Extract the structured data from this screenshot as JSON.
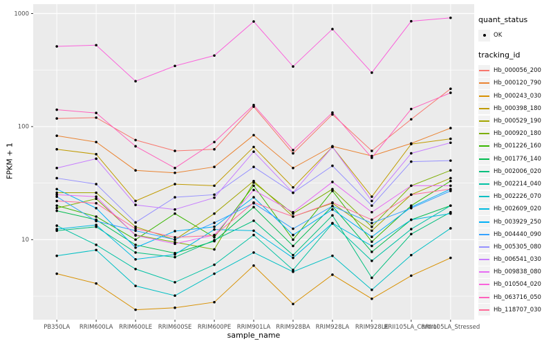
{
  "y_axis": {
    "title": "FPKM + 1",
    "ticks": [
      {
        "label": "10",
        "value": 10
      },
      {
        "label": "100",
        "value": 100
      },
      {
        "label": "1000",
        "value": 1000
      }
    ],
    "minor_gridlines": [
      3.1623,
      31.623,
      316.23
    ]
  },
  "x_axis": {
    "title": "sample_name"
  },
  "legend": {
    "quant_status": {
      "title": "quant_status",
      "items": [
        {
          "label": "OK",
          "marker": "black-point"
        }
      ]
    },
    "tracking": {
      "title": "tracking_id"
    }
  },
  "style": {
    "page_bg": "#FFFFFF",
    "panel_bg": "#EBEBEB",
    "grid_color": "#FFFFFF",
    "tick_label_color": "#4D4D4D",
    "axis_title_color": "#000000",
    "point_color": "#000000",
    "legend_key_bg": "#F2F2F2"
  },
  "chart_data": {
    "type": "line",
    "title": "",
    "xlabel": "sample_name",
    "ylabel": "FPKM + 1",
    "yscale": "log10",
    "ylim": [
      1.96,
      1210
    ],
    "grid": true,
    "legend_position": "right",
    "point_marker": "black dot (quant_status = OK)",
    "categories": [
      "PB350LA",
      "RRIM600LA",
      "RRIM600LE",
      "RRIM600SE",
      "RRIM600PE",
      "RRIM901LA",
      "RRIM928BA",
      "RRIM928LA",
      "RRIM928LE",
      "RRII105LA_Control",
      "RRII105LA_Stressed"
    ],
    "series": [
      {
        "name": "Hb_000056_200",
        "color": "#F8766D",
        "values": [
          118,
          120,
          76,
          61,
          63,
          150,
          58,
          128,
          61,
          116,
          216
        ]
      },
      {
        "name": "Hb_000120_790",
        "color": "#EA8331",
        "values": [
          83,
          73,
          41,
          39,
          44,
          84,
          43,
          67,
          55,
          71,
          97
        ]
      },
      {
        "name": "Hb_000243_030",
        "color": "#D89000",
        "values": [
          5.0,
          4.1,
          2.4,
          2.5,
          2.8,
          5.9,
          2.7,
          4.9,
          3.0,
          4.8,
          6.9
        ]
      },
      {
        "name": "Hb_000398_180",
        "color": "#C09B00",
        "values": [
          63,
          57,
          22,
          31,
          30,
          66,
          29,
          66,
          24,
          70,
          78
        ]
      },
      {
        "name": "Hb_000529_190",
        "color": "#A3A500",
        "values": [
          26,
          26,
          13,
          10,
          17,
          33,
          16,
          21,
          12,
          25,
          35
        ]
      },
      {
        "name": "Hb_000920_180",
        "color": "#7CAE00",
        "values": [
          19,
          23,
          11,
          9.5,
          8.2,
          32,
          17,
          28,
          13,
          30,
          41
        ]
      },
      {
        "name": "Hb_001226_160",
        "color": "#39B600",
        "values": [
          20,
          16,
          10,
          17,
          10.5,
          30,
          10,
          27,
          9.6,
          20,
          33
        ]
      },
      {
        "name": "Hb_001776_140",
        "color": "#00BB4E",
        "values": [
          18,
          15,
          9,
          7.6,
          9.7,
          19.4,
          8.8,
          19.8,
          7.8,
          15,
          20
        ]
      },
      {
        "name": "Hb_002006_020",
        "color": "#00BF7D",
        "values": [
          12,
          13,
          7.7,
          7.0,
          9.9,
          14.7,
          7.3,
          16.4,
          4.6,
          11.2,
          17.5
        ]
      },
      {
        "name": "Hb_002214_040",
        "color": "#00C1A3",
        "values": [
          13.3,
          9.0,
          5.5,
          4.2,
          6.0,
          11.0,
          5.4,
          13.9,
          6.5,
          12.4,
          20
        ]
      },
      {
        "name": "Hb_002226_070",
        "color": "#00BFC4",
        "values": [
          7.2,
          8.1,
          3.9,
          3.2,
          5.0,
          7.7,
          5.2,
          7.2,
          3.6,
          7.3,
          12.6
        ]
      },
      {
        "name": "Hb_002609_020",
        "color": "#00BAE0",
        "values": [
          12.4,
          13.5,
          6.7,
          7.4,
          12.3,
          12.0,
          6.9,
          14.0,
          8.8,
          15,
          17
        ]
      },
      {
        "name": "Hb_003929_250",
        "color": "#00B0F6",
        "values": [
          28,
          19,
          8.5,
          11.9,
          13,
          23.7,
          11,
          18.5,
          10.6,
          19.4,
          28
        ]
      },
      {
        "name": "Hb_004440_090",
        "color": "#35A2FF",
        "values": [
          24,
          14.6,
          12,
          10,
          14.1,
          21,
          12.5,
          19.8,
          14,
          19,
          27
        ]
      },
      {
        "name": "Hb_005305_080",
        "color": "#9590FF",
        "values": [
          35,
          31,
          14.2,
          23.7,
          25,
          44,
          26,
          45,
          20,
          49,
          50
        ]
      },
      {
        "name": "Hb_006541_030",
        "color": "#C77CFF",
        "values": [
          43,
          52,
          20.3,
          18.5,
          23.5,
          60,
          26,
          66,
          22,
          58,
          72
        ]
      },
      {
        "name": "Hb_009838_080",
        "color": "#E76BF3",
        "values": [
          25,
          24,
          10.9,
          9.2,
          11,
          27.5,
          17.5,
          32.4,
          17.5,
          30,
          30
        ]
      },
      {
        "name": "Hb_010504_020",
        "color": "#FA62DB",
        "values": [
          512,
          525,
          252,
          344,
          425,
          850,
          340,
          728,
          300,
          855,
          916
        ]
      },
      {
        "name": "Hb_063716_050",
        "color": "#FF62BC",
        "values": [
          141,
          132,
          67,
          43,
          73,
          155,
          62,
          133,
          53,
          143,
          199
        ]
      },
      {
        "name": "Hb_118707_030",
        "color": "#FF6A98",
        "values": [
          22,
          21,
          12.5,
          10.5,
          10.9,
          21.3,
          16,
          21.3,
          15,
          25,
          28
        ]
      }
    ]
  }
}
